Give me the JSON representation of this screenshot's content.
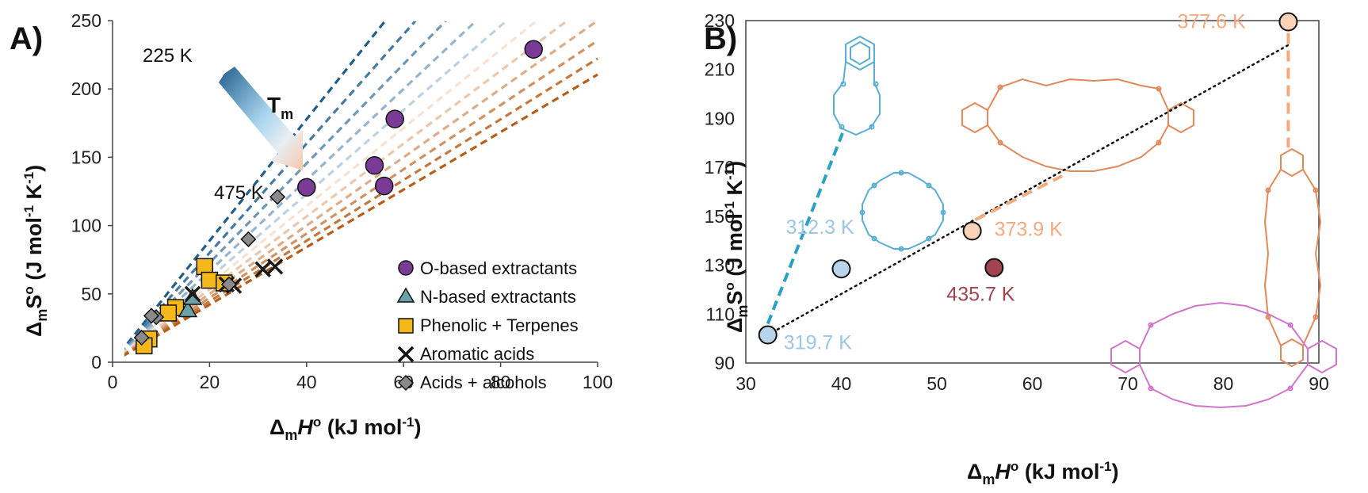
{
  "colors": {
    "o_based": "#7a3b96",
    "n_based": "#6aa3a7",
    "phenolic": "#f4b81b",
    "aromatic": "#1a1a1a",
    "acids": "#8a8a8a",
    "cold_line": "#1f5d8c",
    "hot_line": "#b85d18",
    "cyan_link": "#2aa0c4",
    "orange_link": "#f4a97e",
    "trend": "#111111",
    "pt_light_blue": "#b9d4ea",
    "pt_orange": "#fbd1b8",
    "pt_maroon": "#a0454f",
    "struct_blue": "#5aaed1",
    "struct_orange": "#e08a5c",
    "struct_pink": "#cf76c8"
  },
  "panel_a": {
    "label": "A)",
    "temp_high": "225 K",
    "temp_low": "475 K",
    "tm_label": "T",
    "tm_sub": "m"
  },
  "panel_b": {
    "label": "B)"
  },
  "chart_data": [
    {
      "type": "scatter",
      "panel": "A",
      "xlabel": "ΔmH° (kJ mol-1)",
      "ylabel": "ΔmS° (J mol-1 K-1)",
      "xlim": [
        0,
        100
      ],
      "ylim": [
        0,
        250
      ],
      "xticks": [
        0,
        20,
        40,
        60,
        80,
        100
      ],
      "yticks": [
        0,
        50,
        100,
        150,
        200,
        250
      ],
      "reference_lines": {
        "description": "dashed isotherm lines ΔS = ΔH / Tm",
        "temperatures_K": [
          225,
          250,
          275,
          300,
          325,
          350,
          375,
          400,
          425,
          450,
          475
        ]
      },
      "series": [
        {
          "name": "O-based extractants",
          "marker": "circle",
          "x": [
            86.8,
            58.2,
            54.0,
            56.0,
            40.0
          ],
          "y": [
            229,
            178,
            144,
            129,
            128
          ]
        },
        {
          "name": "N-based extractants",
          "marker": "triangle",
          "x": [
            15.5,
            16.5
          ],
          "y": [
            38,
            47
          ]
        },
        {
          "name": "Phenolic + Terpenes",
          "marker": "square",
          "x": [
            19.0,
            20.0,
            13.0,
            11.5,
            7.5,
            6.5,
            23.0
          ],
          "y": [
            70,
            60,
            40,
            36,
            17,
            12,
            58
          ]
        },
        {
          "name": "Aromatic acids",
          "marker": "x",
          "x": [
            33.5,
            31.0,
            25.0,
            23.5,
            16.5
          ],
          "y": [
            70,
            68,
            56,
            57,
            50
          ]
        },
        {
          "name": "Acids + alcohols",
          "marker": "diamond",
          "x": [
            34.0,
            28.0,
            24.0,
            9.0,
            8.0,
            6.0
          ],
          "y": [
            121,
            90,
            57,
            33,
            34,
            18
          ]
        }
      ]
    },
    {
      "type": "scatter",
      "panel": "B",
      "xlabel": "ΔmH° (kJ mol-1)",
      "ylabel": "ΔmS° (J mol-1 K-1)",
      "xlim": [
        30,
        90
      ],
      "ylim": [
        90,
        230
      ],
      "xticks": [
        30,
        40,
        50,
        60,
        70,
        80,
        90
      ],
      "yticks": [
        90,
        110,
        130,
        150,
        170,
        190,
        210,
        230
      ],
      "points": [
        {
          "x": 32.3,
          "y": 101.5,
          "label": "319.7 K"
        },
        {
          "x": 40.0,
          "y": 128.5,
          "label": "312.3 K"
        },
        {
          "x": 53.7,
          "y": 144.0,
          "label": "373.9 K"
        },
        {
          "x": 56.0,
          "y": 129.0,
          "label": "435.7 K"
        },
        {
          "x": 86.8,
          "y": 229.5,
          "label": "377.6 K"
        }
      ],
      "trend_line": {
        "x": [
          32.3,
          86.8
        ],
        "y": [
          101.5,
          220.0
        ]
      }
    }
  ]
}
